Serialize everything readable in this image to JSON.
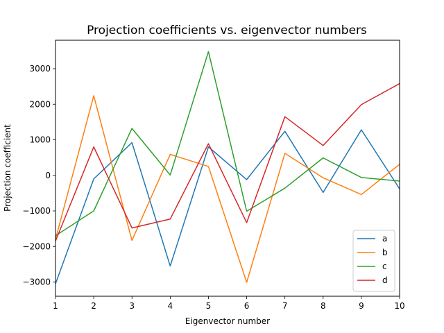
{
  "chart_data": {
    "type": "line",
    "title": "Projection coefficients vs. eigenvector numbers",
    "xlabel": "Eigenvector number",
    "ylabel": "Projection coefficient",
    "x": [
      1,
      2,
      3,
      4,
      5,
      6,
      7,
      8,
      9,
      10
    ],
    "xlim": [
      1,
      10
    ],
    "ylim": [
      -3400,
      3800
    ],
    "xticks": [
      1,
      2,
      3,
      4,
      5,
      6,
      7,
      8,
      9,
      10
    ],
    "yticks": [
      -3000,
      -2000,
      -1000,
      0,
      1000,
      2000,
      3000
    ],
    "grid": false,
    "legend_position": "lower-right",
    "series": [
      {
        "name": "a",
        "color": "#1f77b4",
        "values": [
          -3050,
          -100,
          920,
          -2550,
          800,
          -120,
          1240,
          -480,
          1280,
          -380
        ]
      },
      {
        "name": "b",
        "color": "#ff7f0e",
        "values": [
          -1800,
          2240,
          -1830,
          590,
          250,
          -3010,
          620,
          -70,
          -540,
          310
        ]
      },
      {
        "name": "c",
        "color": "#2ca02c",
        "values": [
          -1700,
          -1000,
          1320,
          10,
          3480,
          -1010,
          -360,
          490,
          -60,
          -160
        ]
      },
      {
        "name": "d",
        "color": "#d62728",
        "values": [
          -1850,
          800,
          -1480,
          -1230,
          890,
          -1330,
          1650,
          840,
          1990,
          2580
        ]
      }
    ]
  }
}
